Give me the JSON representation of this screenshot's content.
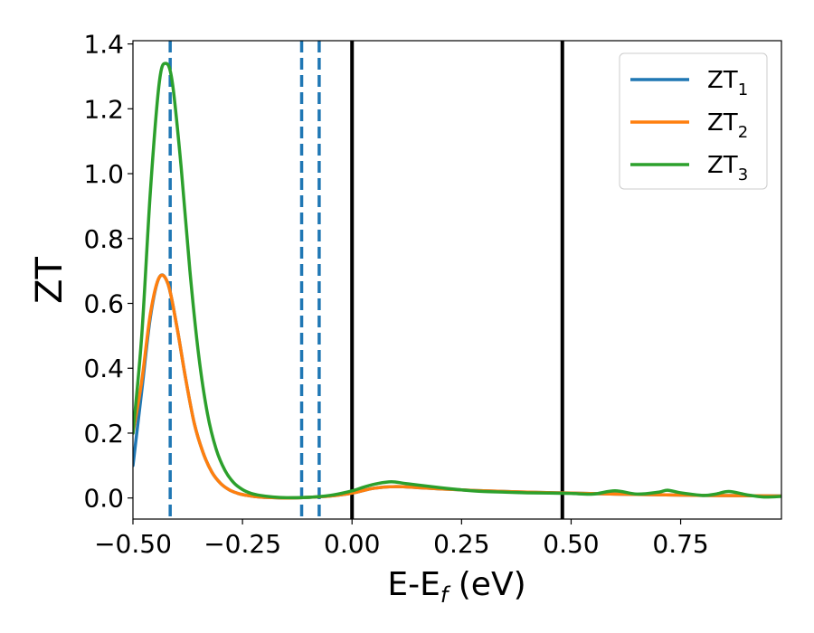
{
  "chart_data": {
    "type": "line",
    "xlabel": "E-E",
    "xlabel_sub": "f",
    "xlabel_unit": " (eV)",
    "ylabel": "ZT",
    "xlim": [
      -0.5,
      0.98
    ],
    "ylim": [
      -0.065,
      1.41
    ],
    "x_ticks": [
      -0.5,
      -0.25,
      0.0,
      0.25,
      0.5,
      0.75
    ],
    "x_tick_labels": [
      "−0.50",
      "−0.25",
      "0.00",
      "0.25",
      "0.50",
      "0.75"
    ],
    "y_ticks": [
      0.0,
      0.2,
      0.4,
      0.6,
      0.8,
      1.0,
      1.2,
      1.4
    ],
    "y_tick_labels": [
      "0.0",
      "0.2",
      "0.4",
      "0.6",
      "0.8",
      "1.0",
      "1.2",
      "1.4"
    ],
    "grid": false,
    "legend_position": "top-right",
    "vlines": [
      {
        "x": -0.415,
        "style": "dashed",
        "color": "#1f77b4"
      },
      {
        "x": -0.115,
        "style": "dashed",
        "color": "#1f77b4"
      },
      {
        "x": -0.075,
        "style": "dashed",
        "color": "#1f77b4"
      },
      {
        "x": 0.0,
        "style": "solid",
        "color": "#000000"
      },
      {
        "x": 0.48,
        "style": "solid",
        "color": "#000000"
      }
    ],
    "series": [
      {
        "name": "ZT",
        "sub": "1",
        "color": "#1f77b4",
        "x": [
          -0.5,
          -0.48,
          -0.46,
          -0.44,
          -0.42,
          -0.4,
          -0.38,
          -0.36,
          -0.34,
          -0.32,
          -0.3,
          -0.28,
          -0.26,
          -0.24,
          -0.22,
          -0.2,
          -0.15,
          -0.1,
          -0.05,
          0.0,
          0.05,
          0.1,
          0.15,
          0.2,
          0.25,
          0.3,
          0.4,
          0.5,
          0.6,
          0.7,
          0.8,
          0.9,
          0.98
        ],
        "y": [
          0.1,
          0.33,
          0.56,
          0.68,
          0.66,
          0.53,
          0.37,
          0.23,
          0.14,
          0.08,
          0.045,
          0.025,
          0.014,
          0.008,
          0.004,
          0.002,
          0.0,
          0.002,
          0.006,
          0.015,
          0.03,
          0.035,
          0.032,
          0.028,
          0.025,
          0.022,
          0.018,
          0.015,
          0.012,
          0.01,
          0.008,
          0.007,
          0.006
        ]
      },
      {
        "name": "ZT",
        "sub": "2",
        "color": "#ff7f0e",
        "x": [
          -0.5,
          -0.48,
          -0.46,
          -0.44,
          -0.42,
          -0.4,
          -0.38,
          -0.36,
          -0.34,
          -0.32,
          -0.3,
          -0.28,
          -0.26,
          -0.24,
          -0.22,
          -0.2,
          -0.15,
          -0.1,
          -0.05,
          0.0,
          0.05,
          0.1,
          0.15,
          0.2,
          0.25,
          0.3,
          0.4,
          0.5,
          0.6,
          0.7,
          0.8,
          0.9,
          0.98
        ],
        "y": [
          0.2,
          0.36,
          0.57,
          0.68,
          0.66,
          0.53,
          0.37,
          0.23,
          0.14,
          0.08,
          0.045,
          0.025,
          0.014,
          0.008,
          0.004,
          0.002,
          0.0,
          0.002,
          0.006,
          0.015,
          0.03,
          0.035,
          0.032,
          0.028,
          0.025,
          0.022,
          0.018,
          0.015,
          0.012,
          0.01,
          0.008,
          0.007,
          0.006
        ]
      },
      {
        "name": "ZT",
        "sub": "3",
        "color": "#2ca02c",
        "x": [
          -0.5,
          -0.48,
          -0.46,
          -0.44,
          -0.425,
          -0.41,
          -0.39,
          -0.37,
          -0.35,
          -0.33,
          -0.31,
          -0.29,
          -0.27,
          -0.25,
          -0.23,
          -0.21,
          -0.18,
          -0.15,
          -0.1,
          -0.05,
          0.0,
          0.03,
          0.06,
          0.09,
          0.12,
          0.15,
          0.2,
          0.25,
          0.3,
          0.35,
          0.4,
          0.45,
          0.5,
          0.55,
          0.6,
          0.65,
          0.7,
          0.72,
          0.75,
          0.8,
          0.83,
          0.86,
          0.9,
          0.94,
          0.98
        ],
        "y": [
          0.2,
          0.5,
          0.95,
          1.28,
          1.34,
          1.28,
          1.02,
          0.7,
          0.44,
          0.26,
          0.15,
          0.085,
          0.047,
          0.026,
          0.014,
          0.008,
          0.003,
          0.001,
          0.002,
          0.008,
          0.022,
          0.035,
          0.045,
          0.05,
          0.045,
          0.04,
          0.032,
          0.025,
          0.02,
          0.018,
          0.016,
          0.015,
          0.014,
          0.012,
          0.022,
          0.012,
          0.018,
          0.024,
          0.016,
          0.008,
          0.012,
          0.02,
          0.01,
          0.003,
          0.005
        ]
      }
    ]
  }
}
